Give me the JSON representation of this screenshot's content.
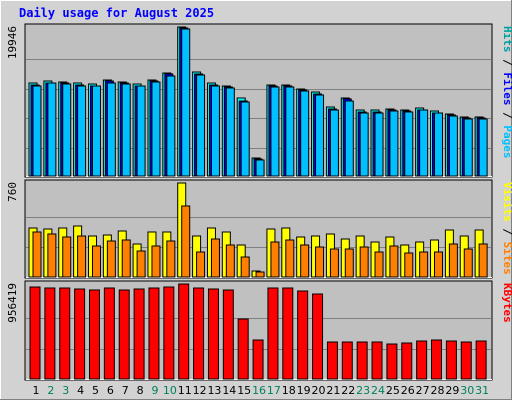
{
  "chart_data": {
    "type": "bar",
    "title": "Daily usage for August 2025",
    "days": [
      "1",
      "2",
      "3",
      "4",
      "5",
      "6",
      "7",
      "8",
      "9",
      "10",
      "11",
      "12",
      "13",
      "14",
      "15",
      "16",
      "17",
      "18",
      "19",
      "20",
      "21",
      "22",
      "23",
      "24",
      "25",
      "26",
      "27",
      "28",
      "29",
      "30",
      "31"
    ],
    "weekend_days": [
      "2",
      "3",
      "9",
      "10",
      "16",
      "17",
      "23",
      "24",
      "30",
      "31"
    ],
    "colors": {
      "title": "#0000ff",
      "hits": "#00ffff",
      "files": "#0000ff",
      "pages": "#00c0ff",
      "visits": "#ffff00",
      "sites": "#ff8000",
      "kbytes": "#ff0000",
      "weekday_label": "#000000",
      "weekend_label": "#00805c",
      "plot_bg": "#c0c0c0",
      "page_bg": "#d2d2d2",
      "grid": "#808080"
    },
    "panels": [
      {
        "name": "hits-files-pages",
        "max_label": "19946",
        "max": 19946,
        "legend": [
          {
            "text": "Hits",
            "color": "#00a0a0"
          },
          {
            "text": " / ",
            "color": "#000000"
          },
          {
            "text": "Files",
            "color": "#0000ff"
          },
          {
            "text": " / ",
            "color": "#000000"
          },
          {
            "text": "Pages",
            "color": "#00c0ff"
          }
        ],
        "series": [
          {
            "name": "Hits",
            "values": [
              12400,
              12700,
              12600,
              12400,
              12300,
              12900,
              12600,
              12300,
              12900,
              13800,
              19946,
              13900,
              12400,
              12100,
              10400,
              2400,
              12200,
              12200,
              11700,
              11200,
              9200,
              10500,
              8800,
              8800,
              9000,
              8900,
              9100,
              8700,
              8300,
              7900,
              7900
            ]
          },
          {
            "name": "Files",
            "values": [
              12200,
              12500,
              12400,
              12200,
              12100,
              12700,
              12400,
              12100,
              12700,
              13600,
              19800,
              13700,
              12200,
              11900,
              10100,
              2300,
              12000,
              12000,
              11500,
              11000,
              9000,
              10300,
              8600,
              8600,
              8800,
              8700,
              8900,
              8500,
              8100,
              7700,
              7700
            ]
          },
          {
            "name": "Pages",
            "values": [
              12100,
              12400,
              12300,
              12100,
              12000,
              12500,
              12300,
              12000,
              12600,
              13400,
              19700,
              13500,
              12100,
              11800,
              9900,
              2200,
              11900,
              11900,
              11400,
              10800,
              8900,
              10100,
              8500,
              8500,
              8700,
              8600,
              8800,
              8400,
              8000,
              7600,
              7600
            ]
          }
        ]
      },
      {
        "name": "visits-sites",
        "max_label": "760",
        "max": 760,
        "legend": [
          {
            "text": "Visits",
            "color": "#ffff00"
          },
          {
            "text": " / ",
            "color": "#000000"
          },
          {
            "text": "Sites",
            "color": "#ff8000"
          }
        ],
        "series": [
          {
            "name": "Visits",
            "values": [
              400,
              390,
              400,
              410,
              330,
              340,
              370,
              270,
              360,
              360,
              760,
              330,
              400,
              360,
              260,
              50,
              390,
              400,
              320,
              330,
              350,
              310,
              330,
              280,
              320,
              260,
              280,
              300,
              380,
              330,
              380
            ]
          },
          {
            "name": "Sites",
            "values": [
              360,
              350,
              320,
              330,
              250,
              290,
              300,
              210,
              250,
              290,
              570,
              200,
              310,
              260,
              160,
              40,
              280,
              300,
              260,
              240,
              230,
              230,
              240,
              200,
              250,
              190,
              200,
              200,
              270,
              230,
              270
            ]
          }
        ]
      },
      {
        "name": "kbytes",
        "max_label": "956419",
        "max": 956419,
        "legend": [
          {
            "text": "KBytes",
            "color": "#ff0000"
          }
        ],
        "series": [
          {
            "name": "KBytes",
            "values": [
              930000,
              920000,
              920000,
              910000,
              900000,
              920000,
              900000,
              910000,
              920000,
              930000,
              956419,
              920000,
              910000,
              900000,
              600000,
              390000,
              920000,
              920000,
              890000,
              860000,
              370000,
              370000,
              370000,
              370000,
              350000,
              360000,
              380000,
              390000,
              380000,
              370000,
              380000
            ]
          }
        ]
      }
    ]
  }
}
